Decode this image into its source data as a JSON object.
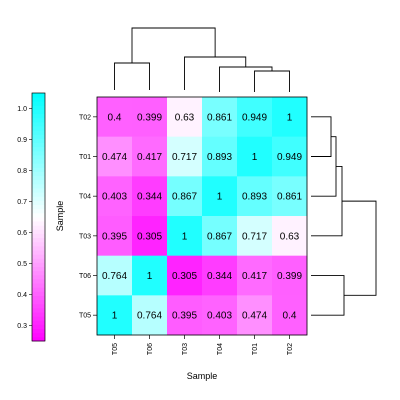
{
  "colors": {
    "low": "#ff00ff",
    "mid": "#ffffff",
    "high": "#00ffff",
    "dendrogram": "#000000"
  },
  "chart_data": {
    "type": "heatmap",
    "xlabel": "Sample",
    "ylabel": "Sample",
    "columns": [
      "T05",
      "T06",
      "T03",
      "T04",
      "T01",
      "T02"
    ],
    "rows": [
      "T02",
      "T01",
      "T04",
      "T03",
      "T06",
      "T05"
    ],
    "values": [
      [
        0.4,
        0.399,
        0.63,
        0.861,
        0.949,
        1
      ],
      [
        0.474,
        0.417,
        0.717,
        0.893,
        1,
        0.949
      ],
      [
        0.403,
        0.344,
        0.867,
        1,
        0.893,
        0.861
      ],
      [
        0.395,
        0.305,
        1,
        0.867,
        0.717,
        0.63
      ],
      [
        0.764,
        1,
        0.305,
        0.344,
        0.417,
        0.399
      ],
      [
        1,
        0.764,
        0.395,
        0.403,
        0.474,
        0.4
      ]
    ],
    "colorbar": {
      "range": [
        0.25,
        1.05
      ],
      "ticks": [
        "0.3",
        "0.4",
        "0.5",
        "0.6",
        "0.7",
        "0.8",
        "0.9",
        "1.0"
      ]
    },
    "dendrogram": "hierarchical clustering shown on top (columns) and right (rows)"
  }
}
